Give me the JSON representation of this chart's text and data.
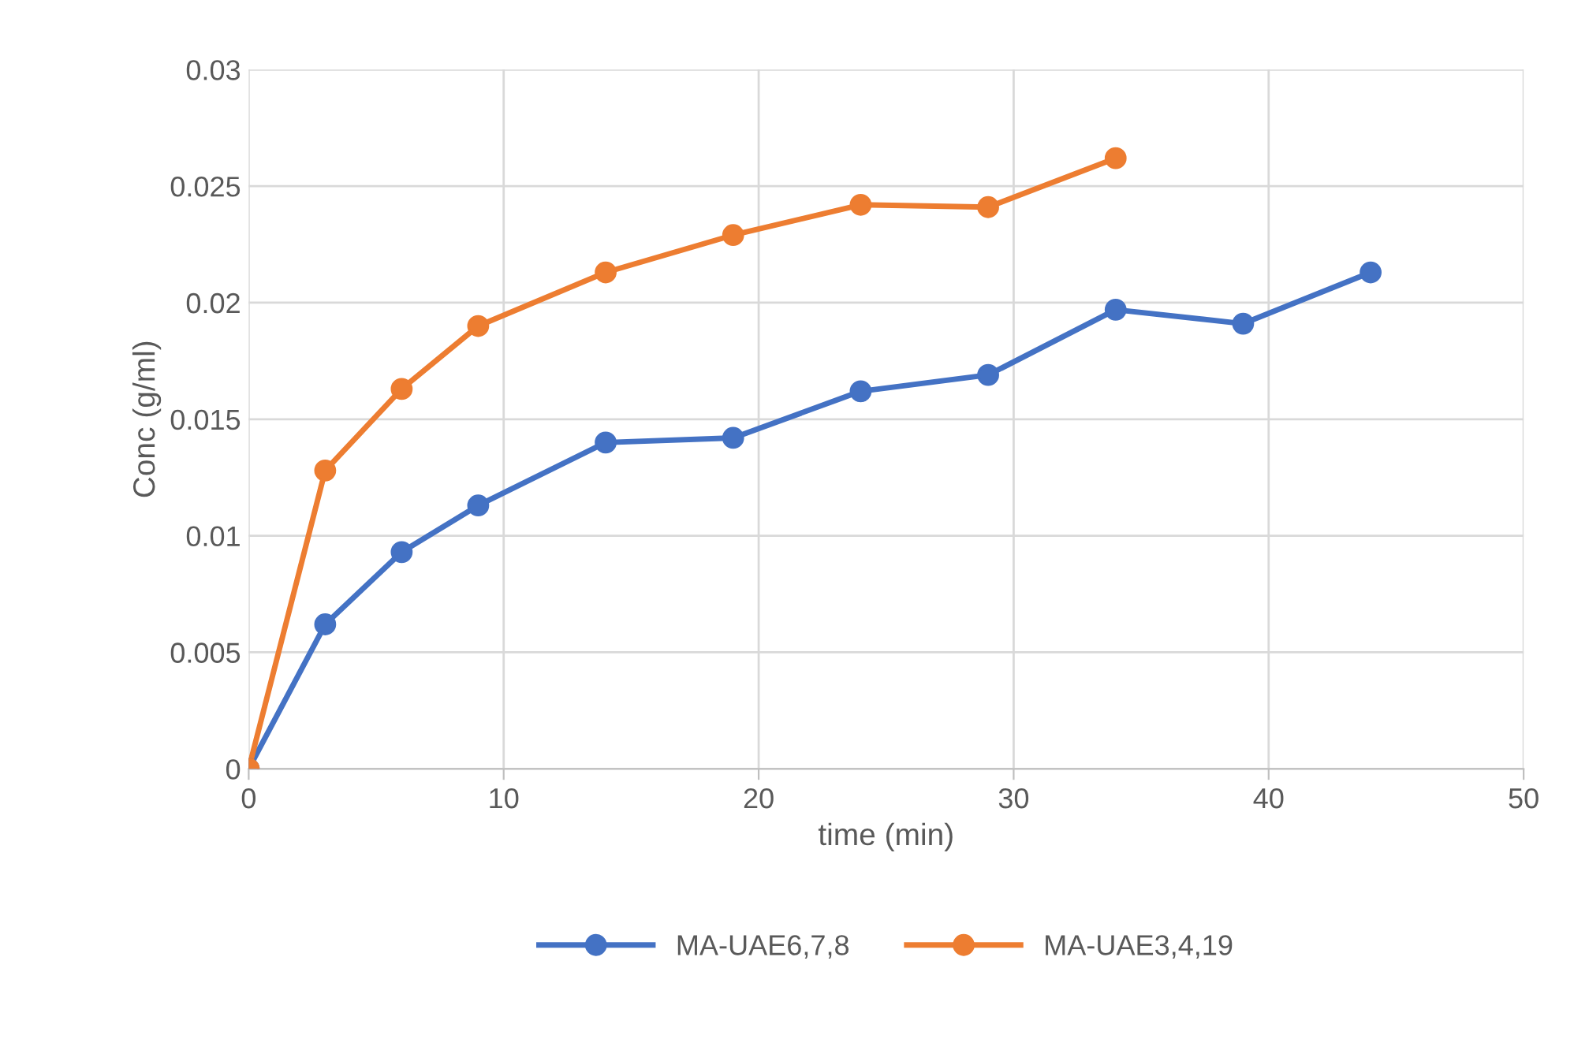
{
  "chart_data": {
    "type": "line",
    "xlabel": "time (min)",
    "ylabel": "Conc (g/ml)",
    "xlim": [
      0,
      50
    ],
    "xticks": [
      0,
      10,
      20,
      30,
      40,
      50
    ],
    "ylim": [
      0,
      0.03
    ],
    "yticks": [
      0,
      0.005,
      0.01,
      0.015,
      0.02,
      0.025,
      0.03
    ],
    "grid": true,
    "legend": "bottom",
    "marker": "circle",
    "line_style": "solid",
    "series": [
      {
        "name": "MA-UAE6,7,8",
        "color": "#4472c4",
        "x": [
          0,
          3,
          6,
          9,
          14,
          19,
          24,
          29,
          34,
          39,
          44
        ],
        "values": [
          0,
          0.0062,
          0.0093,
          0.0113,
          0.014,
          0.0142,
          0.0162,
          0.0169,
          0.0197,
          0.0191,
          0.0213
        ]
      },
      {
        "name": "MA-UAE3,4,19",
        "color": "#ed7d31",
        "x": [
          0,
          3,
          6,
          9,
          14,
          19,
          24,
          29,
          34
        ],
        "values": [
          0,
          0.0128,
          0.0163,
          0.019,
          0.0213,
          0.0229,
          0.0242,
          0.0241,
          0.0262
        ]
      }
    ]
  }
}
